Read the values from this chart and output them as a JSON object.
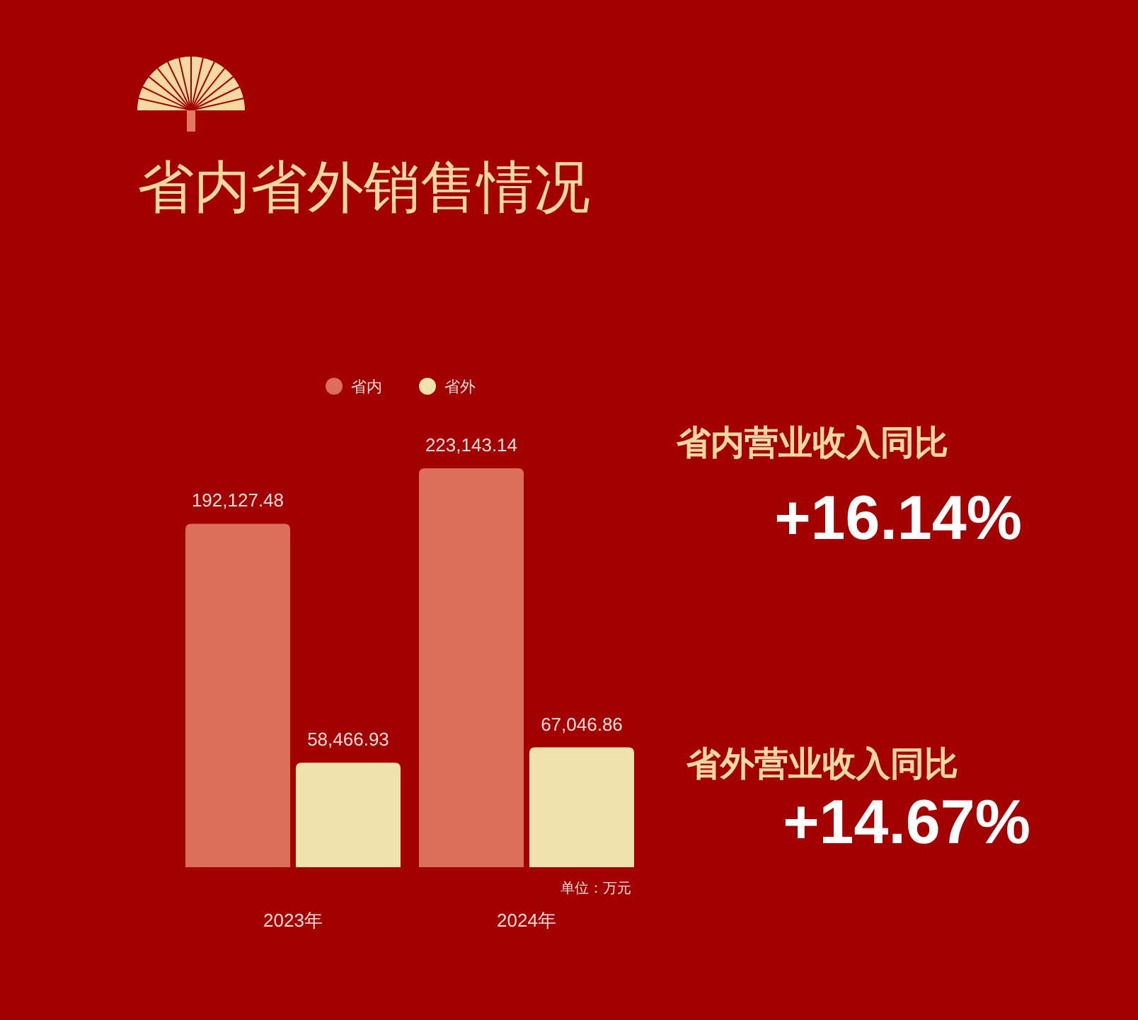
{
  "chart_data": {
    "type": "bar",
    "title": "省内省外销售情况",
    "categories": [
      "2023年",
      "2024年"
    ],
    "series": [
      {
        "name": "省内",
        "color": "#dd6e58",
        "values": [
          192127.48,
          223143.14
        ],
        "value_labels": [
          "192,127.48",
          "223,143.14"
        ]
      },
      {
        "name": "省外",
        "color": "#f1e2ab",
        "values": [
          58466.93,
          67046.86
        ],
        "value_labels": [
          "58,466.93",
          "67,046.86"
        ]
      }
    ],
    "legend": "top",
    "annotations": [
      "单位：万元",
      "省内营业收入同比",
      "+16.14%",
      "省外营业收入同比",
      "+14.67%"
    ]
  }
}
